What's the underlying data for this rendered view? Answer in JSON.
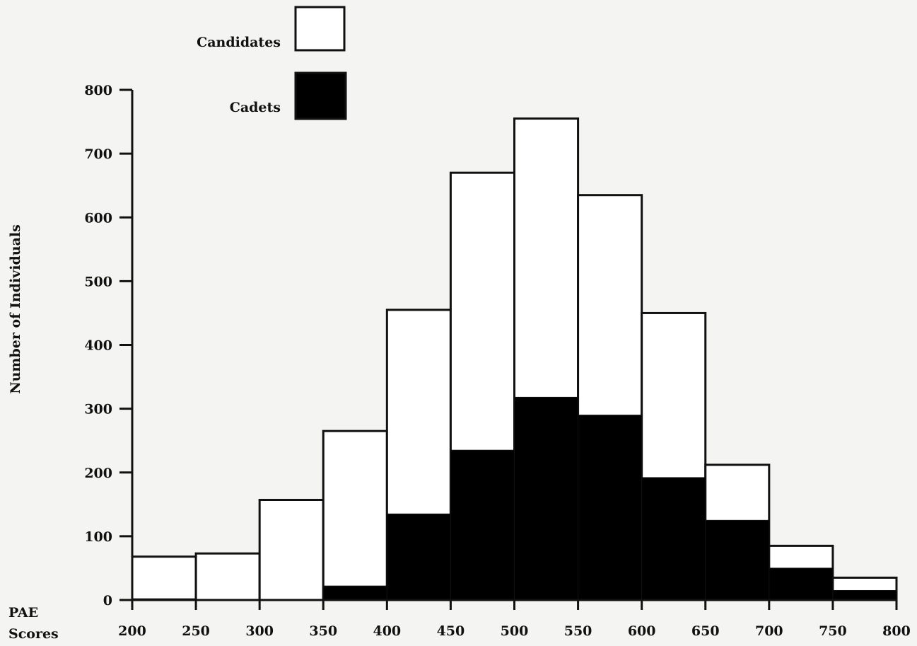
{
  "chart_data": {
    "type": "bar",
    "title": "",
    "xlabel": "PAE Scores",
    "ylabel": "Number of Individuals",
    "xlabel_lines": [
      "PAE",
      "Scores"
    ],
    "x_ticks": [
      200,
      250,
      300,
      350,
      400,
      450,
      500,
      550,
      600,
      650,
      700,
      750,
      800
    ],
    "y_ticks": [
      0,
      100,
      200,
      300,
      400,
      500,
      600,
      700,
      800
    ],
    "ylim": [
      0,
      800
    ],
    "xlim": [
      200,
      800
    ],
    "bins": [
      {
        "start": 200,
        "end": 250
      },
      {
        "start": 250,
        "end": 300
      },
      {
        "start": 300,
        "end": 350
      },
      {
        "start": 350,
        "end": 400
      },
      {
        "start": 400,
        "end": 450
      },
      {
        "start": 450,
        "end": 500
      },
      {
        "start": 500,
        "end": 550
      },
      {
        "start": 550,
        "end": 600
      },
      {
        "start": 600,
        "end": 650
      },
      {
        "start": 650,
        "end": 700
      },
      {
        "start": 700,
        "end": 750
      },
      {
        "start": 750,
        "end": 800
      }
    ],
    "series": [
      {
        "name": "Candidates",
        "color": "#ffffff",
        "values": [
          68,
          73,
          157,
          265,
          455,
          670,
          755,
          635,
          450,
          212,
          85,
          35
        ]
      },
      {
        "name": "Cadets",
        "color": "#000000",
        "values": [
          2,
          0,
          0,
          22,
          135,
          235,
          318,
          290,
          192,
          125,
          50,
          15
        ]
      }
    ],
    "grid": false,
    "legend_position": "top-left"
  }
}
